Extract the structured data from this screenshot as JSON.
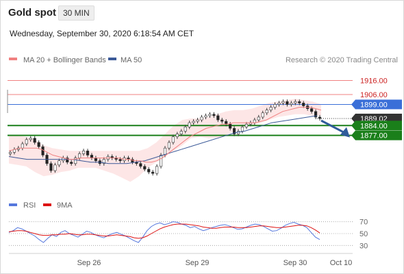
{
  "header": {
    "title": "Gold spot",
    "timeframe": "30 MIN",
    "datetime": "Wednesday, September 30, 2020 6:18:54 AM CET"
  },
  "legend": {
    "ma20_label": "MA 20 + Bollinger Bands",
    "ma50_label": "MA 50",
    "credit": "Research © 2020 Trading Central",
    "rsi_label": "RSI",
    "rsi_ma_label": "9MA"
  },
  "colors": {
    "ma20": "#f08080",
    "ma50": "#3b5998",
    "band_fill": "#fde3e3",
    "resistance": "#f08080",
    "pivot": "#3a6fd8",
    "support": "#1a7f1a",
    "current": "#333333",
    "forecast_arrow": "#2f5b9a",
    "rsi": "#5577dd",
    "rsi_ma": "#dd1111"
  },
  "chart_data": [
    {
      "type": "line",
      "name": "price",
      "x_categories": [
        "Sep 26",
        "Sep 29",
        "Sep 30",
        "Oct 10"
      ],
      "ylim": [
        1835,
        1925
      ],
      "price_levels": [
        {
          "value": 1916.0,
          "label": "1916.00",
          "kind": "resistance"
        },
        {
          "value": 1906.0,
          "label": "1906.00",
          "kind": "resistance"
        },
        {
          "value": 1899.0,
          "label": "1899.00",
          "kind": "pivot"
        },
        {
          "value": 1889.02,
          "label": "1889.02",
          "kind": "current"
        },
        {
          "value": 1884.0,
          "label": "1884.00",
          "kind": "support"
        },
        {
          "value": 1877.0,
          "label": "1877.00",
          "kind": "support"
        }
      ],
      "close_series": [
        1865,
        1867,
        1868,
        1871,
        1874,
        1875,
        1872,
        1869,
        1863,
        1857,
        1852,
        1856,
        1859,
        1861,
        1858,
        1857,
        1861,
        1864,
        1866,
        1863,
        1861,
        1859,
        1857,
        1860,
        1862,
        1861,
        1860,
        1859,
        1861,
        1860,
        1858,
        1857,
        1855,
        1853,
        1851,
        1850,
        1855,
        1863,
        1868,
        1872,
        1876,
        1878,
        1880,
        1883,
        1886,
        1887,
        1888,
        1890,
        1891,
        1892,
        1891,
        1888,
        1887,
        1885,
        1882,
        1878,
        1880,
        1883,
        1885,
        1886,
        1888,
        1890,
        1893,
        1895,
        1897,
        1899,
        1900,
        1901,
        1899,
        1900,
        1901,
        1900,
        1898,
        1896,
        1894,
        1890,
        1889
      ],
      "ma20_series": [
        1866,
        1867,
        1868,
        1868,
        1868,
        1868,
        1867,
        1865,
        1863,
        1862,
        1861,
        1860,
        1860,
        1861,
        1861,
        1861,
        1861,
        1861,
        1861,
        1861,
        1861,
        1860,
        1860,
        1859,
        1859,
        1858,
        1858,
        1859,
        1861,
        1864,
        1867,
        1870,
        1873,
        1876,
        1878,
        1880,
        1882,
        1883,
        1884,
        1885,
        1885,
        1886,
        1886,
        1886,
        1886,
        1886,
        1887,
        1888,
        1890,
        1892,
        1894,
        1895,
        1896,
        1897,
        1897,
        1897,
        1896,
        1895
      ],
      "bollinger_upper": [
        1877,
        1877,
        1876,
        1874,
        1870,
        1868,
        1867,
        1866,
        1866,
        1866,
        1866,
        1866,
        1866,
        1866,
        1866,
        1866,
        1868,
        1872,
        1878,
        1884,
        1888,
        1889,
        1889,
        1890,
        1892,
        1894,
        1895,
        1895,
        1896,
        1898,
        1900,
        1901,
        1902,
        1903,
        1902,
        1901,
        1899
      ],
      "bollinger_lower": [
        1857,
        1856,
        1855,
        1851,
        1848,
        1849,
        1851,
        1852,
        1854,
        1854,
        1854,
        1852,
        1850,
        1847,
        1844,
        1848,
        1854,
        1858,
        1862,
        1866,
        1870,
        1875,
        1876,
        1875,
        1875,
        1877,
        1880,
        1882,
        1884,
        1886,
        1888,
        1890,
        1891,
        1892,
        1892,
        1891,
        1891
      ],
      "ma50_series": [
        1862,
        1861,
        1860,
        1860,
        1860,
        1860,
        1860,
        1860,
        1859,
        1858,
        1858,
        1857,
        1857,
        1857,
        1858,
        1859,
        1861,
        1863,
        1865,
        1867,
        1869,
        1871,
        1873,
        1875,
        1877,
        1879,
        1880,
        1882,
        1884,
        1886,
        1887,
        1888,
        1889,
        1890,
        1891
      ]
    },
    {
      "type": "line",
      "name": "rsi",
      "x_categories": [
        "Sep 26",
        "Sep 29",
        "Sep 30",
        "Oct 10"
      ],
      "yticks": [
        "70",
        "50",
        "30"
      ],
      "ylim": [
        20,
        80
      ],
      "rsi_series": [
        52,
        55,
        60,
        58,
        54,
        50,
        46,
        40,
        35,
        42,
        48,
        45,
        52,
        55,
        50,
        47,
        44,
        49,
        54,
        52,
        48,
        45,
        43,
        47,
        50,
        52,
        49,
        46,
        42,
        38,
        35,
        44,
        55,
        62,
        66,
        68,
        65,
        67,
        70,
        69,
        66,
        64,
        60,
        62,
        58,
        55,
        57,
        60,
        62,
        64,
        65,
        63,
        60,
        57,
        58,
        61,
        64,
        66,
        65,
        62,
        58,
        54,
        55,
        59,
        64,
        67,
        69,
        66,
        64,
        60,
        52,
        44,
        40
      ],
      "rsi_ma_series": [
        53,
        54,
        55,
        55,
        54,
        52,
        50,
        48,
        47,
        47,
        48,
        48,
        49,
        49,
        50,
        49,
        48,
        48,
        49,
        49,
        48,
        47,
        46,
        46,
        47,
        48,
        47,
        46,
        45,
        43,
        42,
        43,
        46,
        50,
        54,
        58,
        61,
        63,
        65,
        66,
        66,
        66,
        65,
        64,
        63,
        61,
        60,
        59,
        59,
        60,
        61,
        61,
        61,
        60,
        60,
        60,
        61,
        62,
        63,
        63,
        62,
        61,
        60,
        60,
        61,
        62,
        63,
        64,
        64,
        63,
        60,
        56,
        51
      ]
    }
  ]
}
